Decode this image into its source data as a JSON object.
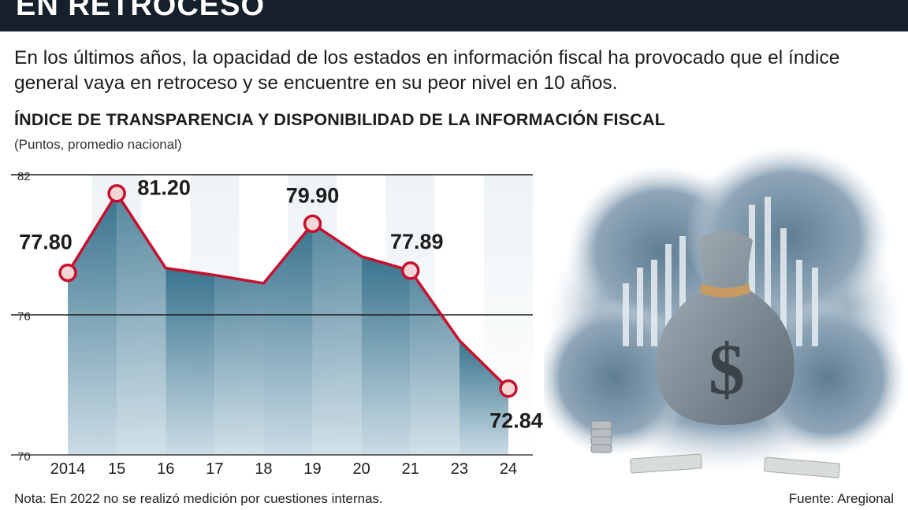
{
  "header": {
    "title": "EN RETROCESO"
  },
  "intro": "En los últimos años, la opacidad de los estados en información fiscal ha provocado que el índice general vaya en retroceso y se encuentre en su peor nivel en 10 años.",
  "chart_data": {
    "type": "area",
    "title": "ÍNDICE DE TRANSPARENCIA Y DISPONIBILIDAD DE LA INFORMACIÓN FISCAL",
    "subtitle": "(Puntos, promedio nacional)",
    "categories": [
      "2014",
      "15",
      "16",
      "17",
      "18",
      "19",
      "20",
      "21",
      "23",
      "24"
    ],
    "values": [
      77.8,
      81.2,
      78.0,
      77.7,
      77.35,
      79.9,
      78.5,
      77.89,
      74.9,
      72.84
    ],
    "labeled": [
      {
        "index": 0,
        "label": "77.80"
      },
      {
        "index": 1,
        "label": "81.20"
      },
      {
        "index": 5,
        "label": "79.90"
      },
      {
        "index": 7,
        "label": "77.89"
      },
      {
        "index": 9,
        "label": "72.84"
      }
    ],
    "markers": [
      0,
      1,
      5,
      7,
      9
    ],
    "yticks": [
      "82",
      "76",
      "70"
    ],
    "ylim": [
      70,
      82
    ],
    "colors": {
      "line": "#c8102e",
      "fill_top": "#2f6c88",
      "fill_bottom": "#c8dae4",
      "marker_fill": "#f2d5d5"
    }
  },
  "footer": {
    "note": "Nota: En 2022 no se realizó medición por cuestiones internas.",
    "source": "Fuente: Aregional"
  }
}
